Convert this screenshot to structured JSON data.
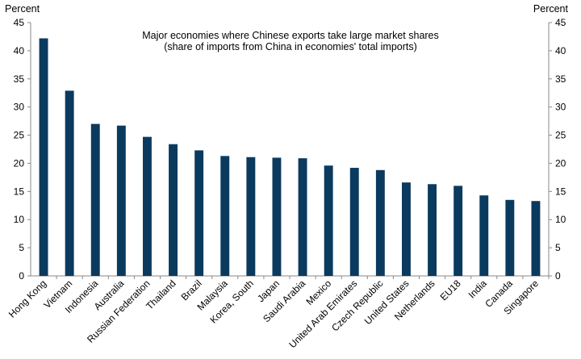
{
  "chart_data": {
    "type": "bar",
    "title": "Major economies where Chinese exports take large market shares",
    "subtitle": "(share of imports from China in economies' total imports)",
    "ylabel_left": "Percent",
    "ylabel_right": "Percent",
    "ylim": [
      0,
      45
    ],
    "yticks": [
      0,
      5,
      10,
      15,
      20,
      25,
      30,
      35,
      40,
      45
    ],
    "grid": false,
    "bar_color": "#0b3a5f",
    "categories": [
      "Hong Kong",
      "Vietnam",
      "Indonesia",
      "Australia",
      "Russian Federation",
      "Thailand",
      "Brazil",
      "Malaysia",
      "Korea, South",
      "Japan",
      "Saudi Arabia",
      "Mexico",
      "United Arab Emirates",
      "Czech Republic",
      "United States",
      "Netherlands",
      "EU18",
      "India",
      "Canada",
      "Singapore"
    ],
    "values": [
      42.2,
      32.9,
      27.0,
      26.7,
      24.7,
      23.4,
      22.3,
      21.3,
      21.1,
      21.0,
      20.9,
      19.6,
      19.2,
      18.8,
      16.6,
      16.3,
      16.0,
      14.3,
      13.5,
      13.3
    ]
  }
}
